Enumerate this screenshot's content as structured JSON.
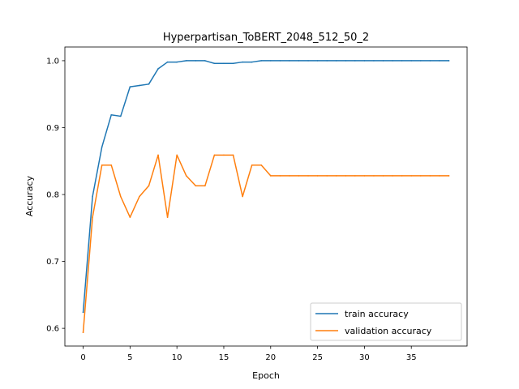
{
  "chart_data": {
    "type": "line",
    "title": "Hyperpartisan_ToBERT_2048_512_50_2",
    "xlabel": "Epoch",
    "ylabel": "Accuracy",
    "xlim": [
      -1.95,
      40.95
    ],
    "ylim": [
      0.5735,
      1.0205
    ],
    "xticks": [
      0,
      5,
      10,
      15,
      20,
      25,
      30,
      35
    ],
    "yticks": [
      0.6,
      0.7,
      0.8,
      0.9,
      1.0
    ],
    "ytick_labels": [
      "0.6",
      "0.7",
      "0.8",
      "0.9",
      "1.0"
    ],
    "grid": false,
    "legend_position": "lower-right",
    "x": [
      0,
      1,
      2,
      3,
      4,
      5,
      6,
      7,
      8,
      9,
      10,
      11,
      12,
      13,
      14,
      15,
      16,
      17,
      18,
      19,
      20,
      21,
      22,
      23,
      24,
      25,
      26,
      27,
      28,
      29,
      30,
      31,
      32,
      33,
      34,
      35,
      36,
      37,
      38,
      39
    ],
    "series": [
      {
        "name": "train accuracy",
        "color": "#1f77b4",
        "values": [
          0.624,
          0.797,
          0.871,
          0.919,
          0.917,
          0.961,
          0.963,
          0.965,
          0.988,
          0.998,
          0.998,
          1.0,
          1.0,
          1.0,
          0.996,
          0.996,
          0.996,
          0.998,
          0.998,
          1.0,
          1.0,
          1.0,
          1.0,
          1.0,
          1.0,
          1.0,
          1.0,
          1.0,
          1.0,
          1.0,
          1.0,
          1.0,
          1.0,
          1.0,
          1.0,
          1.0,
          1.0,
          1.0,
          1.0,
          1.0
        ]
      },
      {
        "name": "validation accuracy",
        "color": "#ff7f0e",
        "values": [
          0.594,
          0.766,
          0.844,
          0.844,
          0.797,
          0.766,
          0.797,
          0.813,
          0.859,
          0.766,
          0.859,
          0.828,
          0.813,
          0.813,
          0.859,
          0.859,
          0.859,
          0.797,
          0.844,
          0.844,
          0.828,
          0.828,
          0.828,
          0.828,
          0.828,
          0.828,
          0.828,
          0.828,
          0.828,
          0.828,
          0.828,
          0.828,
          0.828,
          0.828,
          0.828,
          0.828,
          0.828,
          0.828,
          0.828,
          0.828
        ]
      }
    ]
  }
}
